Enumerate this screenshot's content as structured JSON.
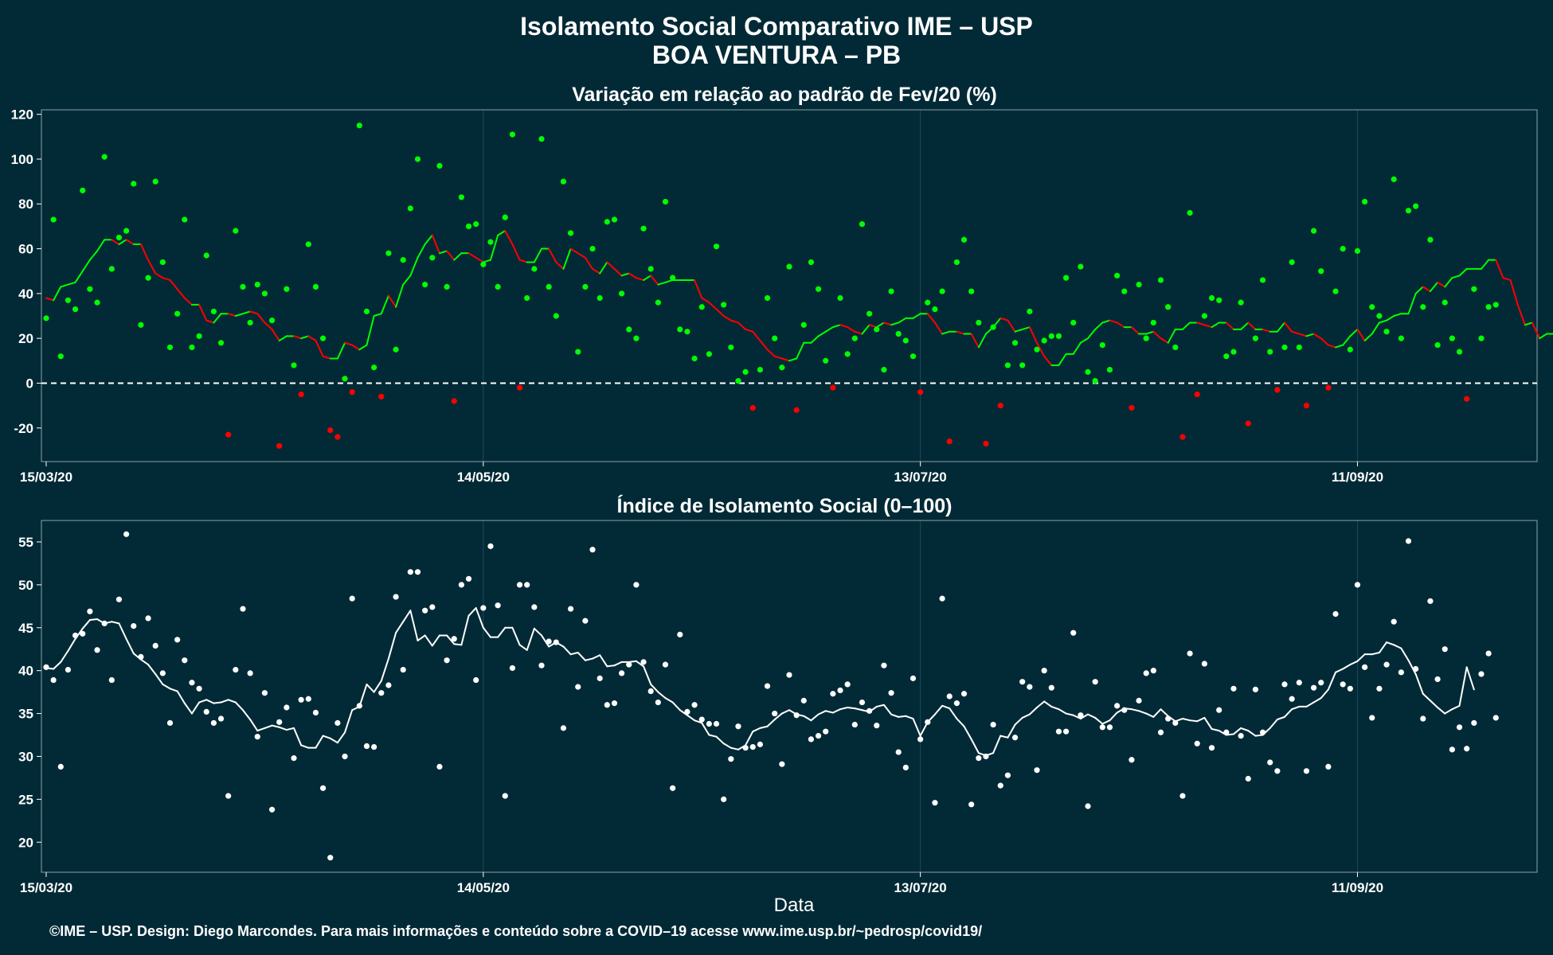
{
  "figure": {
    "title_line1": "Isolamento Social Comparativo IME – USP",
    "title_line2": "BOA VENTURA – PB",
    "xlabel": "Data",
    "footer": "©IME – USP. Design: Diego Marcondes. Para mais informações e conteúdo sobre a COVID–19 acesse www.ime.usp.br/~pedrosp/covid19/",
    "colors": {
      "background": "#022a36",
      "positive": "#00ff00",
      "negative": "#ff0000",
      "index": "#ffffff"
    }
  },
  "chart_data": [
    {
      "type": "line",
      "title": "Variação em relação ao padrão de Fev/20 (%)",
      "x_start": "2020-03-15",
      "x_end": "2020-10-05",
      "x_ticks": [
        "15/03/20",
        "14/05/20",
        "13/07/20",
        "11/09/20"
      ],
      "y_ticks": [
        -20,
        0,
        20,
        40,
        60,
        80,
        100,
        120
      ],
      "ylim": [
        -35,
        122
      ],
      "reference_line": 0,
      "grid": "vertical only",
      "series": [
        {
          "values": [
            29,
            73,
            12,
            37,
            33,
            86,
            42,
            36,
            101,
            51,
            65,
            68,
            89,
            26,
            47,
            90,
            54,
            16,
            31,
            73,
            16,
            21,
            57,
            32,
            18,
            -23,
            68,
            43,
            27,
            44,
            40,
            28,
            -28,
            42,
            8,
            -5,
            62,
            43,
            20,
            -21,
            -24,
            2,
            -4,
            115,
            32,
            7,
            -6,
            58,
            15,
            55,
            78,
            100,
            44,
            56,
            97,
            43,
            -8,
            83,
            70,
            71,
            53,
            63,
            43,
            74,
            111,
            -2,
            38,
            51,
            109,
            43,
            30,
            90,
            67,
            14,
            43,
            60,
            38,
            72,
            73,
            40,
            24,
            20,
            69,
            51,
            36,
            81,
            47,
            24,
            23,
            11,
            34,
            13,
            61,
            35,
            16,
            1,
            5,
            -11,
            6,
            38,
            20,
            7,
            52,
            -12,
            26,
            54,
            42,
            10,
            -2,
            38,
            13,
            20,
            71,
            31,
            24,
            6,
            41,
            22,
            19,
            12,
            -4,
            36,
            33,
            41,
            -26,
            54,
            64,
            41,
            27,
            -27,
            25,
            -10,
            8,
            18,
            8,
            32,
            15,
            19,
            21,
            21,
            47,
            27,
            52,
            5,
            1,
            17,
            6,
            48,
            41,
            -11,
            44,
            20,
            27,
            46,
            34,
            16,
            -24,
            76,
            -5,
            30,
            38,
            37,
            12,
            14,
            36,
            -18,
            20,
            46,
            14,
            -3,
            16,
            54,
            16,
            -10,
            68,
            50,
            -2,
            41,
            60,
            15,
            59,
            81,
            34,
            30,
            23,
            91,
            20,
            77,
            79,
            34,
            64,
            17,
            36,
            20,
            14,
            -7,
            42,
            20,
            34,
            35
          ]
        },
        {
          "values": [
            38,
            37,
            43,
            44,
            45,
            50,
            55,
            59,
            64,
            64,
            62,
            64,
            62,
            62,
            55,
            49,
            47,
            46,
            42,
            38,
            35,
            35,
            28,
            27,
            31,
            31,
            30,
            31,
            32,
            31,
            27,
            24,
            19,
            21,
            21,
            20,
            21,
            19,
            12,
            11,
            11,
            18,
            17,
            15,
            17,
            30,
            31,
            39,
            34,
            44,
            48,
            56,
            62,
            66,
            58,
            59,
            55,
            58,
            58,
            56,
            54,
            55,
            66,
            68,
            62,
            55,
            54,
            54,
            60,
            60,
            54,
            51,
            60,
            58,
            56,
            51,
            49,
            54,
            51,
            48,
            49,
            47,
            46,
            48,
            44,
            45,
            46,
            46,
            46,
            46,
            38,
            36,
            33,
            30,
            28,
            27,
            24,
            23,
            19,
            15,
            12,
            11,
            10,
            11,
            18,
            18,
            21,
            23,
            25,
            26,
            25,
            23,
            22,
            26,
            25,
            27,
            26,
            27,
            29,
            29,
            31,
            31,
            27,
            22,
            23,
            23,
            22,
            22,
            16,
            22,
            25,
            29,
            28,
            23,
            24,
            25,
            18,
            12,
            8,
            8,
            13,
            13,
            18,
            20,
            24,
            27,
            28,
            27,
            25,
            25,
            22,
            22,
            23,
            20,
            18,
            24,
            24,
            27,
            27,
            26,
            25,
            27,
            27,
            24,
            24,
            27,
            24,
            24,
            23,
            23,
            27,
            23,
            22,
            21,
            22,
            20,
            17,
            16,
            17,
            21,
            24,
            19,
            22,
            27,
            28,
            30,
            31,
            31,
            40,
            43,
            41,
            45,
            43,
            47,
            48,
            51,
            51,
            51,
            55,
            55,
            47,
            46,
            35,
            26,
            27,
            20,
            22,
            22
          ]
        }
      ]
    },
    {
      "type": "line",
      "title": "Índice de Isolamento Social (0–100)",
      "x_start": "2020-03-15",
      "x_end": "2020-10-05",
      "x_ticks": [
        "15/03/20",
        "14/05/20",
        "13/07/20",
        "11/09/20"
      ],
      "y_ticks": [
        20,
        25,
        30,
        35,
        40,
        45,
        50,
        55
      ],
      "ylim": [
        16.5,
        57.5
      ],
      "grid": "vertical only",
      "series": [
        {
          "values": [
            40.4,
            38.9,
            28.8,
            40.1,
            44.1,
            44.3,
            46.9,
            42.4,
            45.5,
            38.9,
            48.3,
            55.9,
            45.2,
            41.6,
            46.1,
            42.9,
            39.7,
            33.9,
            43.6,
            41.2,
            38.6,
            37.9,
            35.2,
            33.9,
            34.4,
            25.4,
            40.1,
            47.2,
            39.7,
            32.3,
            37.4,
            23.8,
            34.0,
            35.7,
            29.8,
            36.6,
            36.7,
            35.1,
            26.3,
            18.2,
            33.9,
            30.0,
            48.4,
            35.9,
            31.2,
            31.1,
            37.4,
            38.3,
            48.6,
            40.1,
            51.5,
            51.5,
            47.0,
            47.4,
            28.8,
            41.2,
            43.7,
            50.0,
            50.7,
            38.9,
            47.3,
            54.5,
            47.6,
            25.4,
            40.3,
            50.0,
            50.0,
            47.4,
            40.6,
            43.4,
            43.3,
            33.3,
            47.2,
            38.1,
            45.8,
            54.1,
            39.1,
            36.0,
            36.2,
            39.7,
            40.7,
            50.0,
            41.0,
            37.6,
            36.3,
            40.7,
            26.3,
            44.2,
            35.2,
            36.0,
            34.3,
            33.8,
            33.8,
            25.0,
            29.7,
            33.5,
            31.0,
            31.1,
            31.4,
            38.2,
            35.0,
            29.1,
            39.5,
            34.8,
            36.5,
            32.0,
            32.4,
            32.9,
            37.3,
            37.7,
            38.4,
            33.7,
            36.3,
            35.3,
            33.6,
            40.6,
            37.4,
            30.5,
            28.7,
            39.1,
            32.0,
            34.0,
            24.6,
            48.4,
            37.0,
            36.2,
            37.3,
            24.4,
            29.8,
            30.0,
            33.7,
            26.6,
            27.8,
            32.2,
            38.7,
            38.1,
            28.4,
            40.0,
            38.0,
            32.9,
            32.9,
            44.4,
            34.8,
            24.2,
            38.7,
            33.4,
            33.4,
            35.9,
            35.4,
            29.6,
            36.5,
            39.7,
            40.0,
            32.8,
            34.4,
            33.9,
            25.4,
            42.0,
            31.5,
            40.8,
            31.0,
            35.4,
            32.8,
            37.9,
            32.4,
            27.4,
            37.8,
            32.8,
            29.3,
            28.3,
            38.4,
            36.7,
            38.6,
            28.3,
            38.0,
            38.6,
            28.8,
            46.6,
            38.4,
            37.9,
            50.0,
            40.4,
            34.5,
            37.9,
            40.7,
            45.7,
            39.8,
            55.1,
            40.2,
            34.4,
            48.1,
            39.0,
            42.5,
            30.8,
            33.4,
            30.9,
            33.9,
            39.6,
            42.0,
            34.5
          ]
        },
        {
          "values": [
            40.3,
            40.2,
            41.0,
            42.3,
            43.7,
            44.9,
            45.9,
            46.0,
            45.5,
            45.7,
            45.5,
            43.7,
            42.0,
            41.3,
            40.7,
            39.6,
            38.4,
            37.9,
            37.6,
            36.2,
            35.0,
            36.3,
            36.6,
            36.2,
            36.3,
            36.6,
            36.3,
            35.4,
            34.3,
            33.0,
            33.3,
            33.6,
            33.4,
            33.1,
            33.3,
            31.3,
            31.0,
            31.0,
            32.4,
            32.1,
            31.6,
            32.8,
            35.4,
            35.8,
            38.4,
            37.5,
            38.8,
            41.4,
            44.4,
            45.7,
            47.0,
            43.5,
            44.1,
            42.9,
            44.1,
            44.1,
            43.1,
            43.0,
            46.4,
            47.3,
            45.0,
            43.9,
            43.9,
            45.0,
            45.0,
            43.0,
            42.4,
            44.9,
            44.1,
            42.8,
            43.3,
            42.8,
            41.9,
            42.1,
            41.2,
            41.4,
            41.8,
            40.5,
            40.6,
            41.0,
            41.0,
            41.1,
            40.5,
            38.4,
            37.5,
            36.8,
            36.3,
            35.4,
            34.8,
            34.2,
            33.9,
            32.5,
            32.3,
            31.5,
            31.0,
            30.8,
            31.3,
            32.9,
            33.3,
            33.5,
            34.3,
            35.0,
            35.4,
            34.9,
            34.7,
            34.2,
            34.9,
            35.3,
            35.1,
            35.5,
            35.7,
            35.6,
            35.4,
            35.2,
            35.8,
            36.0,
            34.9,
            34.6,
            34.7,
            34.4,
            32.4,
            34.0,
            34.9,
            35.9,
            35.6,
            34.4,
            33.5,
            32.0,
            30.4,
            30.1,
            30.4,
            32.4,
            32.2,
            33.7,
            34.5,
            34.9,
            35.7,
            36.4,
            35.8,
            35.5,
            35.0,
            34.8,
            34.4,
            34.9,
            34.5,
            33.8,
            34.2,
            35.1,
            35.6,
            35.5,
            35.3,
            35.0,
            34.6,
            35.5,
            34.7,
            34.1,
            34.4,
            34.2,
            34.1,
            34.5,
            33.2,
            33.0,
            32.5,
            32.6,
            33.3,
            33.0,
            32.4,
            32.5,
            33.3,
            34.3,
            34.6,
            35.5,
            35.8,
            35.8,
            36.3,
            36.8,
            37.8,
            39.8,
            40.2,
            40.7,
            41.1,
            41.9,
            41.9,
            42.1,
            43.3,
            43.0,
            42.6,
            41.2,
            39.6,
            37.3,
            36.5,
            35.7,
            35.0,
            35.5,
            35.9,
            40.4,
            37.8
          ]
        }
      ]
    }
  ]
}
